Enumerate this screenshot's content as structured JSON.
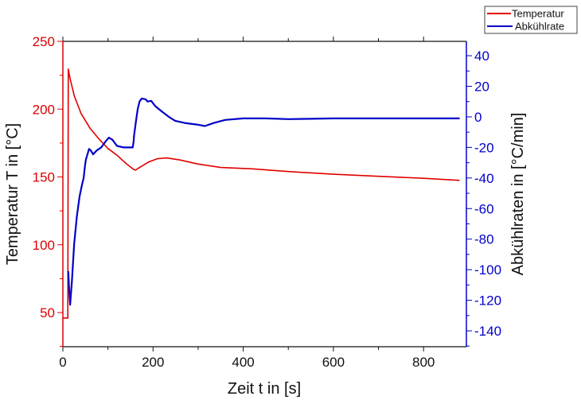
{
  "chart_data": {
    "type": "line",
    "title": "",
    "xlabel": "Zeit t in [s]",
    "ylabel": "Temperatur T in [°C]",
    "y2label": "Abkühlraten in [°C/min]",
    "xlim": [
      0,
      895
    ],
    "ylim": [
      24.8,
      250
    ],
    "y2lim": [
      -150.4,
      49.4
    ],
    "x_ticks": [
      "0",
      "200",
      "400",
      "600",
      "800"
    ],
    "y_ticks": [
      "50",
      "100",
      "150",
      "200",
      "250"
    ],
    "y2_ticks": [
      "40",
      "20",
      "0",
      "-20",
      "-40",
      "-60",
      "-80",
      "-100",
      "-120",
      "-140"
    ],
    "grid": false,
    "legend_position": "top-right",
    "colors": {
      "temperature": "#e00000",
      "rate": "#0000c8"
    },
    "series": [
      {
        "name": "Temperatur",
        "axis": "left",
        "x": [
          0,
          11,
          12,
          15,
          25,
          40,
          60,
          80,
          100,
          120,
          140,
          155,
          161,
          170,
          190,
          210,
          230,
          260,
          300,
          350,
          420,
          500,
          600,
          700,
          800,
          880
        ],
        "y": [
          46,
          46,
          229.6,
          224,
          210,
          197,
          186,
          178,
          171,
          166,
          160,
          156,
          155,
          157,
          161,
          163.5,
          164,
          162.5,
          159.5,
          157,
          156,
          154,
          152,
          150.5,
          149,
          147.5
        ]
      },
      {
        "name": "Abkühlrate",
        "axis": "right",
        "x": [
          12,
          13.5,
          16,
          20,
          25,
          31,
          37,
          42,
          46,
          49,
          51,
          55,
          58,
          62,
          67,
          75,
          85,
          95,
          102,
          110,
          120,
          135,
          155,
          157,
          158,
          162,
          166,
          170,
          175,
          183,
          188,
          196,
          205,
          219,
          235,
          249,
          270,
          297,
          315,
          335,
          360,
          400,
          450,
          500,
          550,
          600,
          700,
          800,
          880
        ],
        "y": [
          -101,
          -110,
          -123,
          -108,
          -83,
          -65,
          -52,
          -45,
          -40,
          -32,
          -28,
          -24,
          -21,
          -22,
          -24.5,
          -22,
          -20,
          -16,
          -13.6,
          -15,
          -19,
          -20,
          -20,
          -16,
          -12,
          -3,
          5,
          10,
          12,
          11.5,
          10,
          10.5,
          7,
          3.6,
          0,
          -2.6,
          -4,
          -5,
          -6,
          -4,
          -2,
          -1,
          -1,
          -1.5,
          -1.3,
          -1,
          -1,
          -1,
          -1
        ]
      }
    ]
  }
}
